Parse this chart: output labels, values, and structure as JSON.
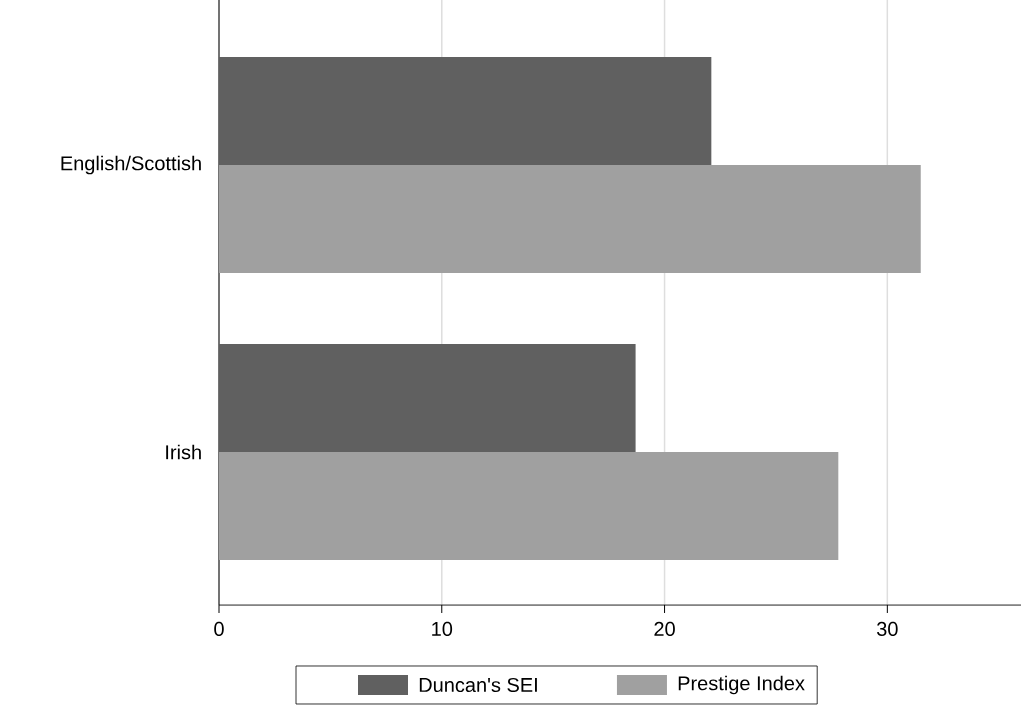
{
  "chart_data": {
    "type": "bar",
    "orientation": "horizontal",
    "categories": [
      "English/Scottish",
      "Irish"
    ],
    "series": [
      {
        "name": "Duncan's SEI",
        "color": "#606060",
        "values": [
          22.1,
          18.7
        ]
      },
      {
        "name": "Prestige Index",
        "color": "#a0a0a0",
        "values": [
          31.5,
          27.8
        ]
      }
    ],
    "xlim": [
      0,
      36
    ],
    "xticks": [
      0,
      10,
      20,
      30
    ],
    "grid": "x",
    "legend": "bottom"
  }
}
